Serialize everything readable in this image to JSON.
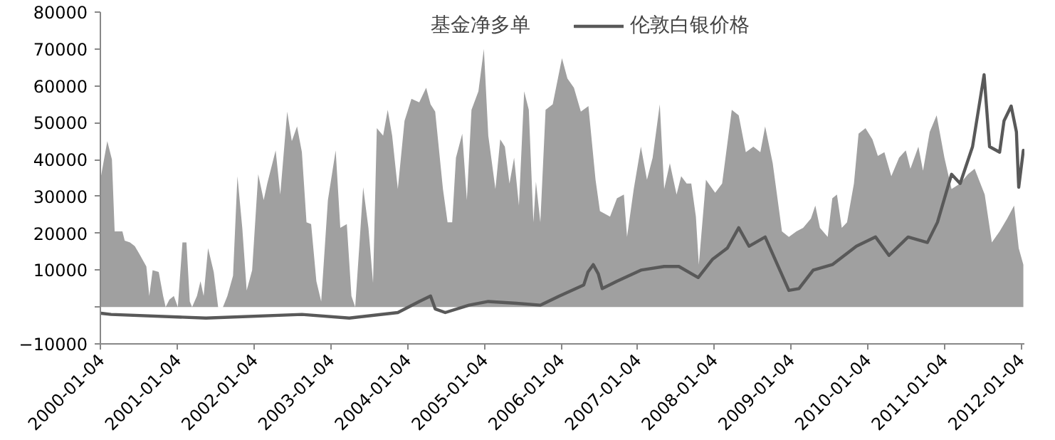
{
  "chart_data": {
    "type": "area",
    "xlim": [
      "2000-01-01",
      "2012-01-20"
    ],
    "ylim": [
      -10000,
      80000
    ],
    "xticks": [
      "2000-01-04",
      "2001-01-04",
      "2002-01-04",
      "2003-01-04",
      "2004-01-04",
      "2005-01-04",
      "2006-01-04",
      "2007-01-04",
      "2008-01-04",
      "2009-01-04",
      "2010-01-04",
      "2011-01-04",
      "2012-01-04"
    ],
    "yticks": [
      -10000,
      {
        "value": 0,
        "label": null
      },
      10000,
      20000,
      30000,
      40000,
      50000,
      60000,
      70000,
      80000
    ],
    "grid": false,
    "legend": "top",
    "series": [
      {
        "name": "基金净多单",
        "color": "#a0a0a0",
        "x": [
          "2000-01-04",
          "2000-02-03",
          "2000-02-25",
          "2000-03-09",
          "2000-04-15",
          "2000-04-26",
          "2000-05-21",
          "2000-06-13",
          "2000-07-04",
          "2000-08-07",
          "2000-08-21",
          "2000-09-06",
          "2000-10-05",
          "2000-10-26",
          "2000-11-07",
          "2000-11-25",
          "2000-12-16",
          "2001-01-04",
          "2001-01-26",
          "2001-02-14",
          "2001-03-02",
          "2001-03-13",
          "2001-04-05",
          "2001-04-22",
          "2001-05-07",
          "2001-05-28",
          "2001-06-24",
          "2001-07-15",
          "2001-08-07",
          "2001-08-28",
          "2001-09-24",
          "2001-10-15",
          "2001-11-07",
          "2001-11-28",
          "2001-12-24",
          "2002-01-22",
          "2002-02-17",
          "2002-03-06",
          "2002-04-15",
          "2002-05-07",
          "2002-06-09",
          "2002-07-01",
          "2002-07-26",
          "2002-08-18",
          "2002-09-09",
          "2002-10-01",
          "2002-10-26",
          "2002-11-18",
          "2002-12-20",
          "2003-01-26",
          "2003-02-17",
          "2003-03-20",
          "2003-04-11",
          "2003-04-29",
          "2003-05-18",
          "2003-06-06",
          "2003-07-01",
          "2003-07-23",
          "2003-08-10",
          "2003-09-09",
          "2003-10-01",
          "2003-10-22",
          "2003-11-18",
          "2003-12-20",
          "2004-01-22",
          "2004-02-28",
          "2004-04-01",
          "2004-04-22",
          "2004-05-14",
          "2004-06-20",
          "2004-07-12",
          "2004-08-03",
          "2004-08-21",
          "2004-09-20",
          "2004-10-12",
          "2004-11-03",
          "2004-12-06",
          "2005-01-01",
          "2005-01-22",
          "2005-02-25",
          "2005-03-20",
          "2005-04-11",
          "2005-05-03",
          "2005-05-25",
          "2005-06-17",
          "2005-07-12",
          "2005-08-03",
          "2005-08-25",
          "2005-09-06",
          "2005-09-27",
          "2005-10-22",
          "2005-11-25",
          "2006-01-08",
          "2006-02-03",
          "2006-03-06",
          "2006-04-08",
          "2006-05-14",
          "2006-06-17",
          "2006-07-08",
          "2006-08-25",
          "2006-09-27",
          "2006-10-30",
          "2006-11-14",
          "2006-12-16",
          "2007-01-19",
          "2007-02-17",
          "2007-03-16",
          "2007-04-19",
          "2007-05-10",
          "2007-06-06",
          "2007-07-08",
          "2007-07-30",
          "2007-08-25",
          "2007-09-16",
          "2007-10-08",
          "2007-10-22",
          "2007-11-25",
          "2008-01-08",
          "2008-02-10",
          "2008-03-27",
          "2008-04-29",
          "2008-06-02",
          "2008-07-08",
          "2008-08-10",
          "2008-09-02",
          "2008-10-08",
          "2008-11-21",
          "2008-12-24",
          "2009-01-29",
          "2009-03-02",
          "2009-04-08",
          "2009-04-29",
          "2009-05-21",
          "2009-06-27",
          "2009-07-19",
          "2009-08-10",
          "2009-09-02",
          "2009-09-27",
          "2009-10-30",
          "2009-11-21",
          "2009-12-24",
          "2010-01-26",
          "2010-02-21",
          "2010-03-24",
          "2010-04-26",
          "2010-06-02",
          "2010-07-04",
          "2010-07-26",
          "2010-09-02",
          "2010-09-24",
          "2010-10-26",
          "2010-11-28",
          "2011-01-04",
          "2011-02-07",
          "2011-03-20",
          "2011-04-26",
          "2011-05-28",
          "2011-07-15",
          "2011-08-18",
          "2011-09-24",
          "2011-10-30",
          "2011-12-02",
          "2011-12-24",
          "2012-01-15"
        ],
        "values": [
          35500,
          45000,
          40000,
          20500,
          20500,
          18000,
          17500,
          16500,
          14500,
          11000,
          3000,
          10000,
          9500,
          3000,
          0,
          2000,
          3000,
          0,
          17500,
          17500,
          1500,
          0,
          3000,
          7000,
          3000,
          16000,
          9500,
          0,
          0,
          3000,
          8500,
          35500,
          21500,
          4500,
          10000,
          36000,
          29000,
          33500,
          42500,
          30500,
          53000,
          45000,
          49000,
          42000,
          23000,
          22500,
          7000,
          1500,
          29000,
          42500,
          21500,
          22500,
          3000,
          0,
          16000,
          32500,
          21500,
          6500,
          48500,
          46500,
          53500,
          46500,
          32000,
          50500,
          56500,
          55500,
          59500,
          55000,
          53000,
          32000,
          23000,
          23000,
          40500,
          47000,
          29000,
          53500,
          58500,
          70000,
          46500,
          32000,
          45500,
          43500,
          33500,
          40500,
          27500,
          58500,
          53500,
          23000,
          34000,
          23000,
          53500,
          55000,
          67500,
          62000,
          59500,
          53000,
          54500,
          34500,
          26000,
          24500,
          29500,
          30500,
          19000,
          32000,
          43500,
          34500,
          40500,
          55000,
          32000,
          39000,
          30500,
          35500,
          33500,
          33500,
          24500,
          11500,
          34500,
          31000,
          33500,
          53500,
          52000,
          42000,
          43500,
          42000,
          49000,
          39000,
          20500,
          19000,
          20500,
          21500,
          24000,
          27500,
          21500,
          19000,
          29500,
          30500,
          21500,
          23000,
          33500,
          47000,
          48500,
          45500,
          41000,
          42000,
          35500,
          40500,
          42500,
          37500,
          43500,
          37000,
          47500,
          52000,
          40500,
          32000,
          33500,
          36000,
          37500,
          30500,
          17500,
          20500,
          24000,
          27500,
          16000,
          11500
        ]
      },
      {
        "name": "伦敦白银价格",
        "type": "line",
        "color": "#595959",
        "line_style": "solid",
        "x": [
          "2000-01-04",
          "2000-02-21",
          "2001-05-18",
          "2002-08-18",
          "2003-04-01",
          "2003-11-18",
          "2004-02-28",
          "2004-04-22",
          "2004-05-14",
          "2004-07-01",
          "2004-10-22",
          "2005-01-22",
          "2005-06-06",
          "2005-09-27",
          "2005-12-27",
          "2006-04-22",
          "2006-05-12",
          "2006-06-06",
          "2006-06-30",
          "2006-07-19",
          "2006-09-27",
          "2007-01-19",
          "2007-05-10",
          "2007-07-19",
          "2007-10-19",
          "2007-12-27",
          "2008-03-06",
          "2008-04-29",
          "2008-06-17",
          "2008-09-02",
          "2008-11-11",
          "2008-12-24",
          "2009-02-10",
          "2009-04-19",
          "2009-07-19",
          "2009-11-11",
          "2010-02-10",
          "2010-04-15",
          "2010-07-15",
          "2010-10-15",
          "2010-12-02",
          "2011-02-07",
          "2011-03-20",
          "2011-05-18",
          "2011-07-12",
          "2011-08-07",
          "2011-09-24",
          "2011-10-15",
          "2011-11-18",
          "2011-12-13",
          "2011-12-24",
          "2012-01-15"
        ],
        "values": [
          -1700,
          -2000,
          -3000,
          -2000,
          -3000,
          -1500,
          1500,
          3000,
          -500,
          -1500,
          500,
          1500,
          1000,
          500,
          3000,
          6000,
          9500,
          11500,
          9000,
          5000,
          7000,
          10000,
          11000,
          11000,
          8000,
          13000,
          16000,
          21500,
          16500,
          19000,
          10000,
          4500,
          5000,
          10000,
          11500,
          16500,
          19000,
          14000,
          19000,
          17500,
          23000,
          36000,
          33500,
          43500,
          63000,
          43500,
          42000,
          50500,
          54500,
          47500,
          32500,
          42500
        ]
      }
    ]
  }
}
